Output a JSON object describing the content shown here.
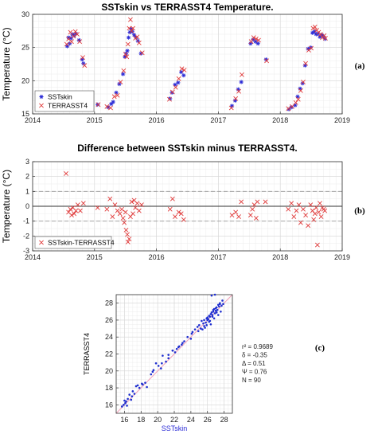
{
  "chart_data": [
    {
      "type": "scatter",
      "title": "SSTskin vs TERRASST4 Temperature.",
      "xlabel": "",
      "ylabel": "Temperature (°C)",
      "xlim": [
        2014,
        2019
      ],
      "ylim": [
        15,
        30
      ],
      "xticks": [
        2014,
        2015,
        2016,
        2017,
        2018,
        2019
      ],
      "yticks": [
        15,
        20,
        25,
        30
      ],
      "grid": true,
      "legend": "bottom-left",
      "panel_label": "(a)",
      "series": [
        {
          "name": "SSTskin",
          "marker": "asterisk",
          "color": "#2b2bd6",
          "x": [
            2014.56,
            2014.58,
            2014.6,
            2014.62,
            2014.64,
            2014.67,
            2014.7,
            2014.75,
            2014.8,
            2014.82,
            2015.05,
            2015.22,
            2015.27,
            2015.3,
            2015.35,
            2015.4,
            2015.46,
            2015.49,
            2015.51,
            2015.53,
            2015.55,
            2015.57,
            2015.59,
            2015.61,
            2015.64,
            2015.67,
            2015.7,
            2015.75,
            2016.22,
            2016.25,
            2016.3,
            2016.35,
            2016.4,
            2016.44,
            2017.22,
            2017.27,
            2017.32,
            2017.37,
            2017.52,
            2017.56,
            2017.6,
            2017.64,
            2017.77,
            2018.14,
            2018.18,
            2018.24,
            2018.28,
            2018.32,
            2018.36,
            2018.4,
            2018.45,
            2018.49,
            2018.52,
            2018.55,
            2018.58,
            2018.61,
            2018.64,
            2018.67,
            2018.7,
            2018.72
          ],
          "y": [
            25.2,
            26.5,
            25.6,
            26.4,
            27.0,
            26.8,
            27.1,
            26.1,
            23.2,
            22.6,
            16.4,
            16.0,
            16.5,
            16.8,
            18.2,
            19.5,
            21.0,
            23.6,
            24.1,
            24.5,
            26.5,
            27.3,
            27.8,
            27.4,
            26.9,
            26.5,
            26.0,
            24.1,
            17.3,
            18.2,
            19.4,
            19.7,
            21.3,
            20.8,
            16.2,
            17.0,
            18.7,
            19.8,
            25.6,
            26.2,
            25.9,
            25.6,
            23.2,
            15.7,
            16.0,
            16.3,
            17.6,
            18.8,
            19.6,
            22.3,
            24.8,
            25.0,
            27.2,
            27.4,
            27.0,
            27.1,
            26.6,
            26.9,
            26.7,
            26.3
          ]
        },
        {
          "name": "TERRASST4",
          "marker": "x",
          "color": "#e03a3a",
          "x": [
            2014.55,
            2014.58,
            2014.61,
            2014.63,
            2014.66,
            2014.69,
            2014.72,
            2014.76,
            2014.81,
            2014.84,
            2015.06,
            2015.2,
            2015.26,
            2015.32,
            2015.37,
            2015.42,
            2015.47,
            2015.5,
            2015.52,
            2015.54,
            2015.56,
            2015.58,
            2015.6,
            2015.62,
            2015.66,
            2015.69,
            2015.72,
            2015.77,
            2016.21,
            2016.26,
            2016.31,
            2016.36,
            2016.41,
            2016.45,
            2017.21,
            2017.28,
            2017.33,
            2017.38,
            2017.53,
            2017.57,
            2017.61,
            2017.65,
            2017.78,
            2018.13,
            2018.19,
            2018.25,
            2018.29,
            2018.33,
            2018.37,
            2018.41,
            2018.46,
            2018.5,
            2018.53,
            2018.56,
            2018.59,
            2018.62,
            2018.65,
            2018.68,
            2018.71,
            2018.73
          ],
          "y": [
            25.5,
            26.3,
            27.3,
            25.9,
            26.7,
            27.4,
            27.0,
            25.9,
            23.5,
            22.3,
            16.4,
            16.1,
            15.9,
            17.6,
            17.8,
            19.8,
            21.5,
            24.0,
            23.6,
            25.5,
            27.9,
            29.2,
            27.5,
            27.9,
            26.4,
            26.6,
            25.7,
            24.2,
            17.2,
            18.3,
            19.0,
            20.3,
            21.8,
            21.6,
            15.9,
            17.3,
            18.4,
            20.9,
            25.9,
            26.5,
            26.3,
            26.1,
            23.0,
            15.8,
            16.1,
            16.7,
            17.2,
            18.5,
            19.8,
            22.6,
            24.6,
            24.9,
            27.9,
            28.1,
            27.6,
            27.3,
            27.0,
            26.5,
            26.8,
            26.4
          ]
        }
      ]
    },
    {
      "type": "scatter",
      "title": "Difference between SSTskin minus TERRASST4.",
      "xlabel": "",
      "ylabel": "Temperature (°C)",
      "xlim": [
        2014,
        2019
      ],
      "ylim": [
        -3,
        3
      ],
      "xticks": [
        2014,
        2015,
        2016,
        2017,
        2018,
        2019
      ],
      "yticks": [
        -3,
        -2,
        -1,
        0,
        1,
        2,
        3
      ],
      "grid": true,
      "reference_lines": [
        -1,
        0,
        1
      ],
      "legend": "bottom-left",
      "panel_label": "(b)",
      "series": [
        {
          "name": "SSTskin-TERRASST4",
          "marker": "x",
          "color": "#e03a3a",
          "x": [
            2014.54,
            2014.58,
            2014.61,
            2014.63,
            2014.65,
            2014.67,
            2014.7,
            2014.73,
            2014.77,
            2014.82,
            2015.05,
            2015.2,
            2015.25,
            2015.29,
            2015.33,
            2015.37,
            2015.41,
            2015.44,
            2015.46,
            2015.48,
            2015.5,
            2015.51,
            2015.53,
            2015.54,
            2015.56,
            2015.58,
            2015.6,
            2015.62,
            2015.64,
            2015.66,
            2015.69,
            2015.72,
            2015.76,
            2016.22,
            2016.26,
            2016.3,
            2016.36,
            2016.4,
            2016.44,
            2017.22,
            2017.28,
            2017.33,
            2017.37,
            2017.52,
            2017.55,
            2017.58,
            2017.61,
            2017.63,
            2017.76,
            2018.13,
            2018.18,
            2018.22,
            2018.26,
            2018.3,
            2018.33,
            2018.37,
            2018.41,
            2018.45,
            2018.49,
            2018.52,
            2018.54,
            2018.56,
            2018.58,
            2018.6,
            2018.62,
            2018.64,
            2018.66,
            2018.68,
            2018.7,
            2018.72
          ],
          "y": [
            2.2,
            -0.4,
            -0.2,
            -0.6,
            -0.1,
            -0.5,
            -0.3,
            0.1,
            -0.3,
            0.2,
            -0.1,
            -0.2,
            0.5,
            -0.7,
            0.1,
            -0.3,
            -0.5,
            -0.2,
            -0.8,
            -1.1,
            -0.4,
            -1.6,
            -1.9,
            -2.4,
            -2.2,
            -0.7,
            0.3,
            -0.5,
            0.4,
            -0.1,
            0.2,
            -0.3,
            0.1,
            -0.2,
            0.5,
            -0.7,
            -0.4,
            -0.5,
            -0.9,
            -0.6,
            -0.4,
            -0.7,
            0.3,
            -0.6,
            -0.2,
            0.1,
            -0.8,
            0.3,
            0.3,
            -0.2,
            0.2,
            -0.7,
            -0.3,
            0.1,
            -1.1,
            -0.2,
            -0.6,
            -1.3,
            0.1,
            -0.3,
            -0.9,
            -0.5,
            -0.1,
            -2.6,
            -0.4,
            0.2,
            -0.7,
            -0.1,
            -0.2,
            -0.3
          ]
        }
      ]
    },
    {
      "type": "scatter",
      "title": "",
      "xlabel": "SSTskin",
      "ylabel": "TERRASST4",
      "xlim": [
        15,
        29
      ],
      "ylim": [
        15,
        29
      ],
      "xticks": [
        16,
        18,
        20,
        22,
        24,
        26,
        28
      ],
      "yticks": [
        16,
        18,
        20,
        22,
        24,
        26,
        28
      ],
      "grid": true,
      "identity_line": true,
      "panel_label": "(c)",
      "stats": [
        "r² = 0.9689",
        "δ = -0.35",
        "Δ = 0.51",
        "Ψ = 0.76",
        "N = 90"
      ],
      "series": [
        {
          "name": "",
          "marker": "dot",
          "color": "#1f2fd0",
          "x": [
            15.7,
            15.9,
            16.1,
            16.4,
            16.0,
            16.3,
            16.8,
            16.6,
            17.0,
            17.2,
            17.4,
            17.8,
            18.2,
            18.5,
            18.7,
            19.2,
            19.5,
            19.8,
            20.1,
            20.4,
            20.6,
            21.0,
            21.3,
            21.8,
            22.1,
            22.3,
            22.6,
            23.0,
            23.6,
            24.0,
            24.2,
            24.5,
            24.8,
            25.0,
            25.2,
            25.3,
            25.5,
            25.6,
            25.8,
            25.9,
            26.0,
            26.1,
            26.2,
            26.3,
            26.4,
            26.5,
            26.6,
            26.7,
            26.8,
            26.9,
            27.0,
            27.1,
            27.2,
            27.3,
            27.4,
            27.5,
            27.7,
            27.8,
            26.5,
            26.9,
            25.4,
            26.2,
            27.3,
            27.6,
            24.1,
            23.2,
            22.5,
            21.3,
            20.5,
            19.4,
            18.1,
            17.6,
            16.9,
            16.2,
            26.0,
            26.6,
            27.0,
            27.5,
            26.8,
            25.9,
            25.6,
            24.9,
            22.9,
            21.8,
            26.3,
            26.7,
            27.1,
            26.4,
            27.9,
            25.7
          ],
          "y": [
            15.8,
            16.0,
            16.2,
            16.7,
            16.5,
            15.9,
            16.6,
            17.2,
            17.6,
            17.3,
            18.2,
            18.0,
            18.4,
            18.6,
            18.1,
            19.6,
            20.1,
            20.9,
            20.6,
            20.3,
            21.8,
            21.1,
            21.5,
            22.4,
            22.2,
            22.6,
            22.9,
            23.3,
            24.0,
            23.8,
            24.6,
            24.9,
            25.2,
            25.4,
            25.0,
            25.9,
            25.6,
            26.0,
            25.7,
            26.2,
            26.3,
            26.1,
            26.5,
            26.4,
            26.7,
            26.9,
            26.6,
            27.0,
            27.3,
            26.8,
            27.1,
            27.5,
            27.2,
            27.8,
            27.6,
            28.0,
            27.7,
            28.3,
            28.9,
            29.0,
            24.9,
            25.8,
            26.6,
            27.0,
            24.4,
            23.5,
            22.8,
            21.9,
            20.9,
            19.9,
            18.5,
            18.3,
            17.0,
            16.4,
            26.0,
            26.4,
            27.4,
            27.9,
            26.2,
            25.4,
            25.3,
            24.7,
            23.1,
            22.4,
            25.9,
            27.2,
            26.9,
            25.5,
            27.9,
            25.1
          ]
        }
      ]
    }
  ]
}
